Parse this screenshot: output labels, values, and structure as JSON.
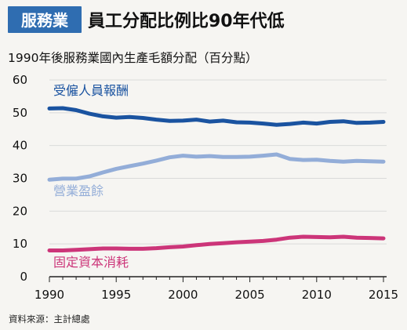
{
  "badge": "服務業",
  "title": "員工分配比例比90年代低",
  "subtitle": "1990年後服務業國內生產毛額分配（百分點）",
  "source": "資料來源：主計總處",
  "colors": {
    "badge_bg": "#2f6db1",
    "background": "#f6f5f2",
    "axis": "#222222",
    "grid": "#dadada"
  },
  "chart_data": {
    "type": "line",
    "title": "員工分配比例比90年代低",
    "subtitle": "1990年後服務業國內生產毛額分配（百分點）",
    "xlabel": "",
    "ylabel": "",
    "xlim": [
      1990,
      2015
    ],
    "ylim": [
      0,
      60
    ],
    "x_ticks": [
      1990,
      1995,
      2000,
      2005,
      2010,
      2015
    ],
    "y_ticks": [
      0,
      10,
      20,
      30,
      40,
      50,
      60
    ],
    "grid": true,
    "legend": "inline labels",
    "x": [
      1990,
      1991,
      1992,
      1993,
      1994,
      1995,
      1996,
      1997,
      1998,
      1999,
      2000,
      2001,
      2002,
      2003,
      2004,
      2005,
      2006,
      2007,
      2008,
      2009,
      2010,
      2011,
      2012,
      2013,
      2014,
      2015
    ],
    "series": [
      {
        "name": "受僱人員報酬",
        "color": "#1a53a0",
        "values": [
          51.3,
          51.4,
          50.8,
          49.7,
          48.9,
          48.5,
          48.7,
          48.4,
          47.9,
          47.5,
          47.6,
          47.9,
          47.3,
          47.6,
          47.1,
          47.0,
          46.7,
          46.3,
          46.6,
          47.0,
          46.7,
          47.2,
          47.4,
          46.9,
          47.0,
          47.2
        ]
      },
      {
        "name": "營業盈餘",
        "color": "#93add8",
        "values": [
          29.6,
          29.9,
          29.9,
          30.6,
          31.8,
          32.9,
          33.7,
          34.5,
          35.4,
          36.4,
          36.9,
          36.6,
          36.8,
          36.5,
          36.5,
          36.6,
          36.9,
          37.3,
          35.9,
          35.6,
          35.7,
          35.3,
          35.1,
          35.3,
          35.2,
          35.1
        ]
      },
      {
        "name": "固定資本消耗",
        "color": "#cc3579",
        "values": [
          8.0,
          8.0,
          8.2,
          8.4,
          8.6,
          8.6,
          8.5,
          8.5,
          8.7,
          9.0,
          9.2,
          9.6,
          10.0,
          10.2,
          10.5,
          10.7,
          10.9,
          11.3,
          11.9,
          12.2,
          12.1,
          12.0,
          12.2,
          11.9,
          11.8,
          11.7
        ]
      }
    ]
  }
}
